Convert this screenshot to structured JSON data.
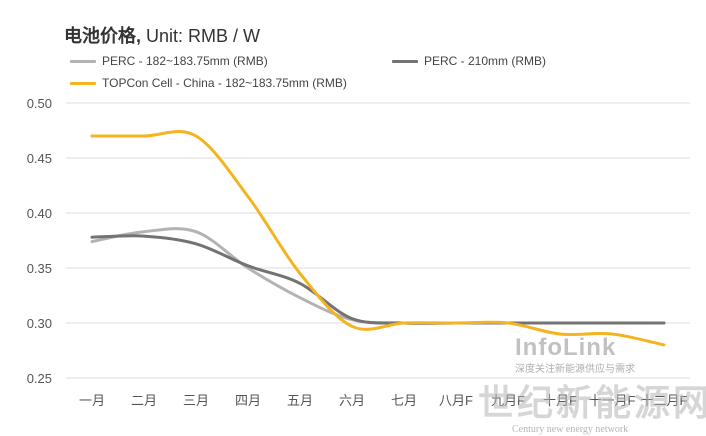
{
  "chart_data": {
    "type": "line",
    "title": "电池价格,",
    "title_unit": "Unit: RMB / W",
    "categories": [
      "一月",
      "二月",
      "三月",
      "四月",
      "五月",
      "六月",
      "七月",
      "八月F",
      "九月F",
      "十月F",
      "十一月F",
      "十二月F"
    ],
    "ylim": [
      0.25,
      0.5
    ],
    "yticks": [
      "0.50",
      "0.45",
      "0.40",
      "0.35",
      "0.30",
      "0.25"
    ],
    "grid": true,
    "legend_position": "top",
    "series": [
      {
        "name": "PERC - 182~183.75mm (RMB)",
        "color": "#b3b3b3",
        "values": [
          0.374,
          0.383,
          0.383,
          0.35,
          0.323,
          0.303,
          0.3,
          0.3,
          0.3,
          0.3,
          0.3,
          0.3
        ]
      },
      {
        "name": "PERC - 210mm (RMB)",
        "color": "#737373",
        "values": [
          0.378,
          0.379,
          0.372,
          0.352,
          0.336,
          0.304,
          0.3,
          0.3,
          0.3,
          0.3,
          0.3,
          0.3
        ]
      },
      {
        "name": "TOPCon Cell - China - 182~183.75mm (RMB)",
        "color": "#f4b41f",
        "values": [
          0.47,
          0.47,
          0.47,
          0.415,
          0.345,
          0.297,
          0.3,
          0.3,
          0.3,
          0.29,
          0.29,
          0.28
        ]
      }
    ]
  },
  "watermarks": {
    "infolink": "InfoLink",
    "infolink_sub": "深度关注新能源供应与需求",
    "sjxny": "世纪新能源网",
    "sjxny_sub": "Century new energy network"
  }
}
